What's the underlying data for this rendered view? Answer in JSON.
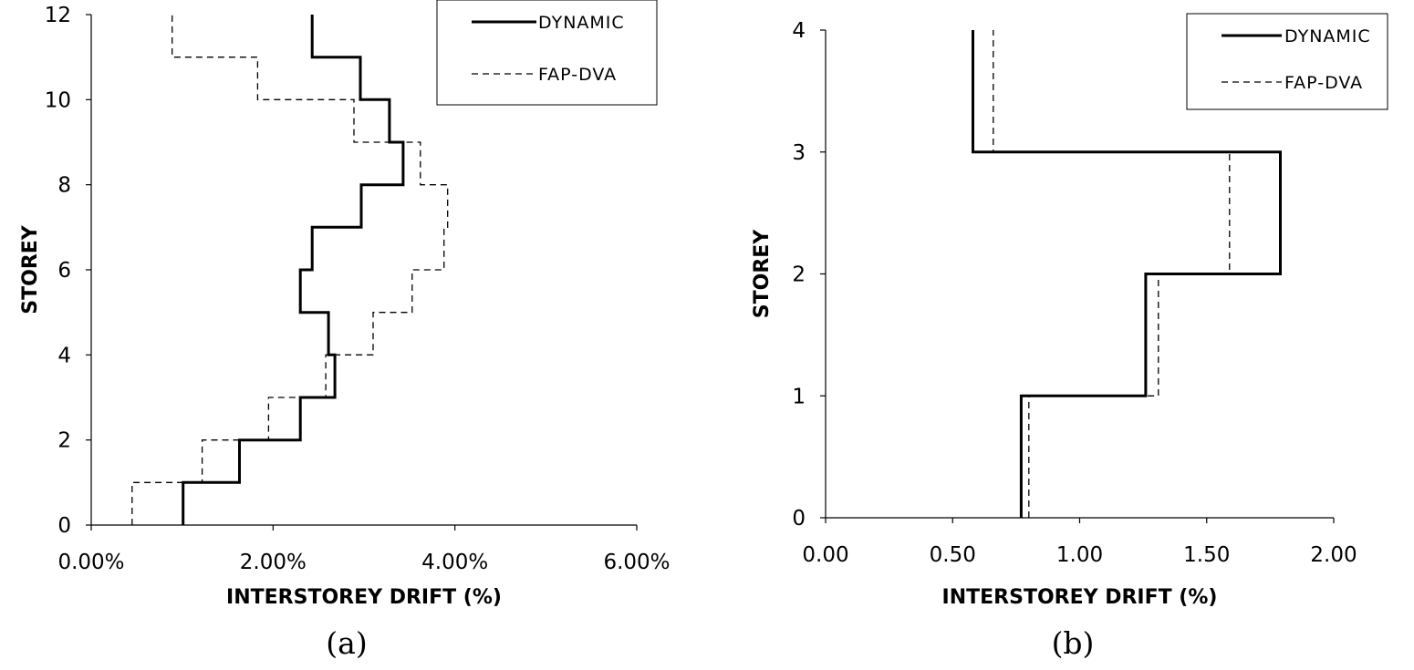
{
  "chart_data": [
    {
      "type": "line",
      "panel_label": "(a)",
      "xlabel": "INTERSTOREY DRIFT (%)",
      "ylabel": "STOREY",
      "xlim": [
        0,
        6
      ],
      "ylim": [
        0,
        12
      ],
      "x_ticks": [
        0,
        2,
        4,
        6
      ],
      "x_tick_labels": [
        "0.00%",
        "2.00%",
        "4.00%",
        "6.00%"
      ],
      "y_ticks": [
        0,
        2,
        4,
        6,
        8,
        10,
        12
      ],
      "y_tick_labels": [
        "0",
        "2",
        "4",
        "6",
        "8",
        "10",
        "12"
      ],
      "grid": false,
      "legend_position": "top-right",
      "series": [
        {
          "name": "DYNAMIC",
          "style": "solid",
          "storey_drifts": [
            1.01,
            1.63,
            2.3,
            2.68,
            2.61,
            2.3,
            2.43,
            2.97,
            3.43,
            3.28,
            2.96,
            2.43
          ]
        },
        {
          "name": "FAP-DVA",
          "style": "dashed",
          "storey_drifts": [
            0.45,
            1.22,
            1.95,
            2.58,
            3.1,
            3.53,
            3.88,
            3.92,
            3.62,
            2.89,
            1.83,
            0.89
          ]
        }
      ]
    },
    {
      "type": "line",
      "panel_label": "(b)",
      "xlabel": "INTERSTOREY DRIFT (%)",
      "ylabel": "STOREY",
      "xlim": [
        0,
        2
      ],
      "ylim": [
        0,
        4
      ],
      "x_ticks": [
        0,
        0.5,
        1,
        1.5,
        2
      ],
      "x_tick_labels": [
        "0.00",
        "0.50",
        "1.00",
        "1.50",
        "2.00"
      ],
      "y_ticks": [
        0,
        1,
        2,
        3,
        4
      ],
      "y_tick_labels": [
        "0",
        "1",
        "2",
        "3",
        "4"
      ],
      "grid": false,
      "legend_position": "top-right",
      "series": [
        {
          "name": "DYNAMIC",
          "style": "solid",
          "storey_drifts": [
            0.77,
            1.26,
            1.79,
            0.58
          ]
        },
        {
          "name": "FAP-DVA",
          "style": "dashed",
          "storey_drifts": [
            0.8,
            1.31,
            1.59,
            0.66
          ]
        }
      ]
    }
  ]
}
